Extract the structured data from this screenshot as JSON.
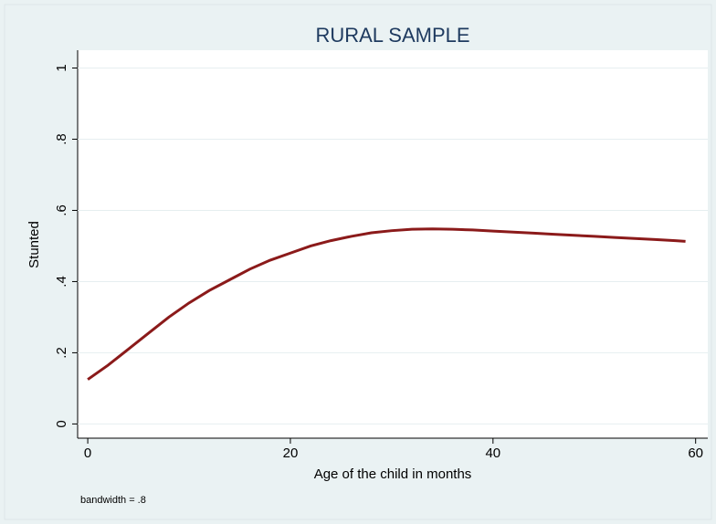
{
  "chart_data": {
    "type": "line",
    "title": "RURAL SAMPLE",
    "x_label": "Age of the child in months",
    "y_label": "Stunted",
    "note": "bandwidth = .8",
    "x": [
      0,
      2,
      4,
      6,
      8,
      10,
      12,
      14,
      16,
      18,
      20,
      22,
      24,
      26,
      28,
      30,
      32,
      34,
      36,
      38,
      40,
      42,
      44,
      46,
      48,
      50,
      52,
      54,
      56,
      58,
      59
    ],
    "series": [
      {
        "color": "#8b1a1a",
        "values": [
          0.125,
          0.165,
          0.21,
          0.255,
          0.3,
          0.34,
          0.375,
          0.405,
          0.435,
          0.46,
          0.48,
          0.5,
          0.515,
          0.527,
          0.537,
          0.543,
          0.547,
          0.548,
          0.547,
          0.545,
          0.542,
          0.539,
          0.536,
          0.533,
          0.53,
          0.527,
          0.524,
          0.521,
          0.518,
          0.515,
          0.513
        ]
      }
    ],
    "xlim": [
      -1,
      61.2
    ],
    "xticks": [
      0,
      20,
      40,
      60
    ],
    "ylim": [
      -0.04,
      1.05
    ],
    "yticks": [
      0,
      {
        "value": 0.2,
        "label": ".2"
      },
      {
        "value": 0.4,
        "label": ".4"
      },
      {
        "value": 0.6,
        "label": ".6"
      },
      {
        "value": 0.8,
        "label": ".8"
      },
      1
    ],
    "grid": true
  }
}
